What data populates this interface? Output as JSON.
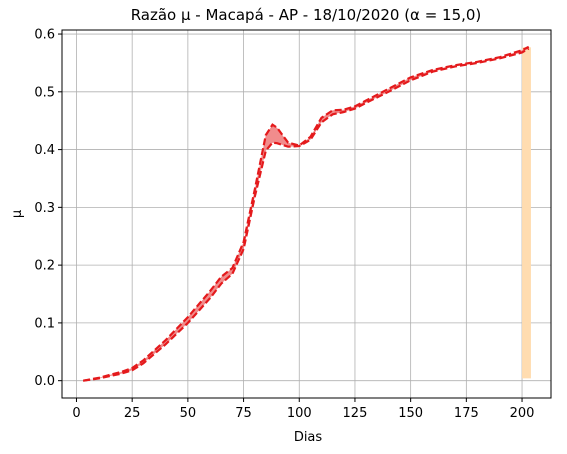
{
  "chart_data": {
    "type": "line",
    "title": "Razão μ - Macapá - AP - 18/10/2020 (α = 15,0)",
    "xlabel": "Dias",
    "ylabel": "μ",
    "xlim": [
      -6.5,
      213
    ],
    "ylim": [
      -0.03,
      0.607
    ],
    "xticks": [
      0,
      25,
      50,
      75,
      100,
      125,
      150,
      175,
      200
    ],
    "yticks": [
      0.0,
      0.1,
      0.2,
      0.3,
      0.4,
      0.5,
      0.6
    ],
    "xtick_labels": [
      "0",
      "25",
      "50",
      "75",
      "100",
      "125",
      "150",
      "175",
      "200"
    ],
    "ytick_labels": [
      "0.0",
      "0.1",
      "0.2",
      "0.3",
      "0.4",
      "0.5",
      "0.6"
    ],
    "grid": true,
    "highlight_band": {
      "x": [
        200,
        204
      ],
      "color": "#ffdcb0"
    },
    "colors": {
      "line": "#e41a1c",
      "band_fill": "#f08080"
    },
    "series": [
      {
        "style": "upper-dashed",
        "x": [
          3,
          10,
          20,
          25,
          30,
          40,
          50,
          60,
          65,
          70,
          75,
          80,
          85,
          88,
          90,
          95,
          100,
          105,
          110,
          115,
          120,
          125,
          130,
          140,
          150,
          160,
          170,
          180,
          190,
          200,
          203
        ],
        "y": [
          0.0,
          0.005,
          0.015,
          0.022,
          0.035,
          0.07,
          0.11,
          0.155,
          0.18,
          0.195,
          0.24,
          0.33,
          0.425,
          0.443,
          0.438,
          0.412,
          0.407,
          0.422,
          0.455,
          0.468,
          0.469,
          0.475,
          0.485,
          0.505,
          0.525,
          0.538,
          0.546,
          0.552,
          0.56,
          0.572,
          0.578
        ]
      },
      {
        "style": "lower-dashed",
        "x": [
          3,
          10,
          20,
          25,
          30,
          40,
          50,
          60,
          65,
          70,
          75,
          80,
          85,
          88,
          90,
          95,
          100,
          105,
          110,
          115,
          120,
          125,
          130,
          140,
          150,
          160,
          170,
          180,
          190,
          200,
          203
        ],
        "y": [
          0.0,
          0.004,
          0.012,
          0.018,
          0.03,
          0.063,
          0.1,
          0.143,
          0.168,
          0.185,
          0.228,
          0.318,
          0.398,
          0.412,
          0.411,
          0.405,
          0.406,
          0.417,
          0.447,
          0.461,
          0.465,
          0.471,
          0.481,
          0.5,
          0.52,
          0.535,
          0.544,
          0.55,
          0.558,
          0.568,
          0.575
        ]
      }
    ]
  }
}
